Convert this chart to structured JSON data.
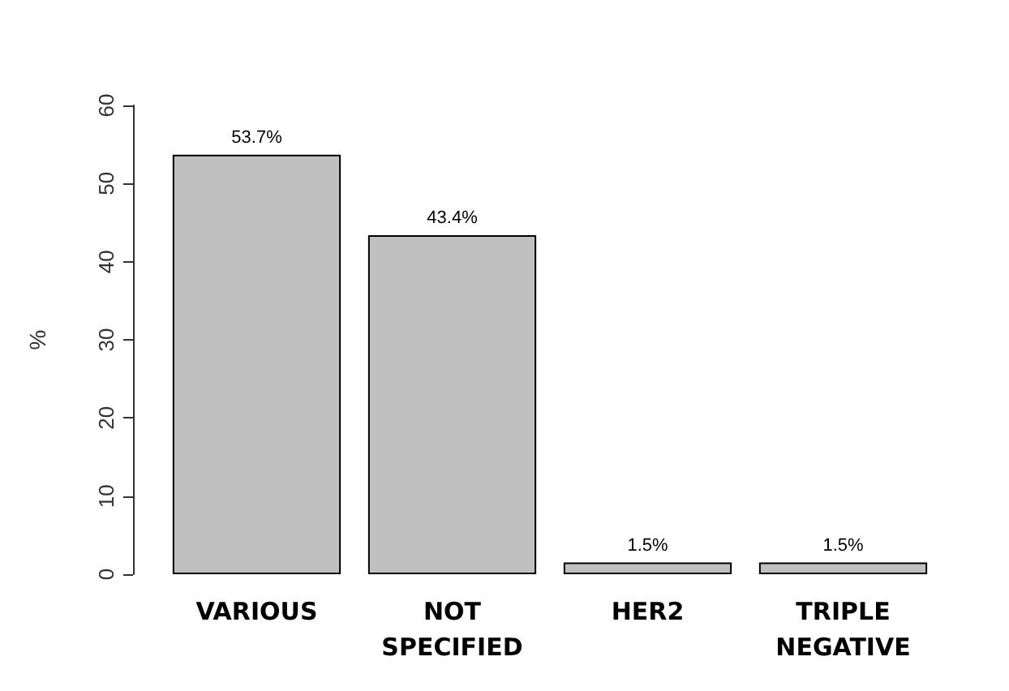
{
  "chart_data": {
    "type": "bar",
    "categories": [
      "VARIOUS",
      "NOT\nSPECIFIED",
      "HER2",
      "TRIPLE\nNEGATIVE"
    ],
    "values": [
      53.7,
      43.4,
      1.5,
      1.5
    ],
    "value_labels": [
      "53.7%",
      "43.4%",
      "1.5%",
      "1.5%"
    ],
    "color": "#c0c0c0",
    "ylabel": "%",
    "ylim": [
      0,
      60
    ],
    "yticks": [
      0,
      10,
      20,
      30,
      40,
      50,
      60
    ]
  }
}
